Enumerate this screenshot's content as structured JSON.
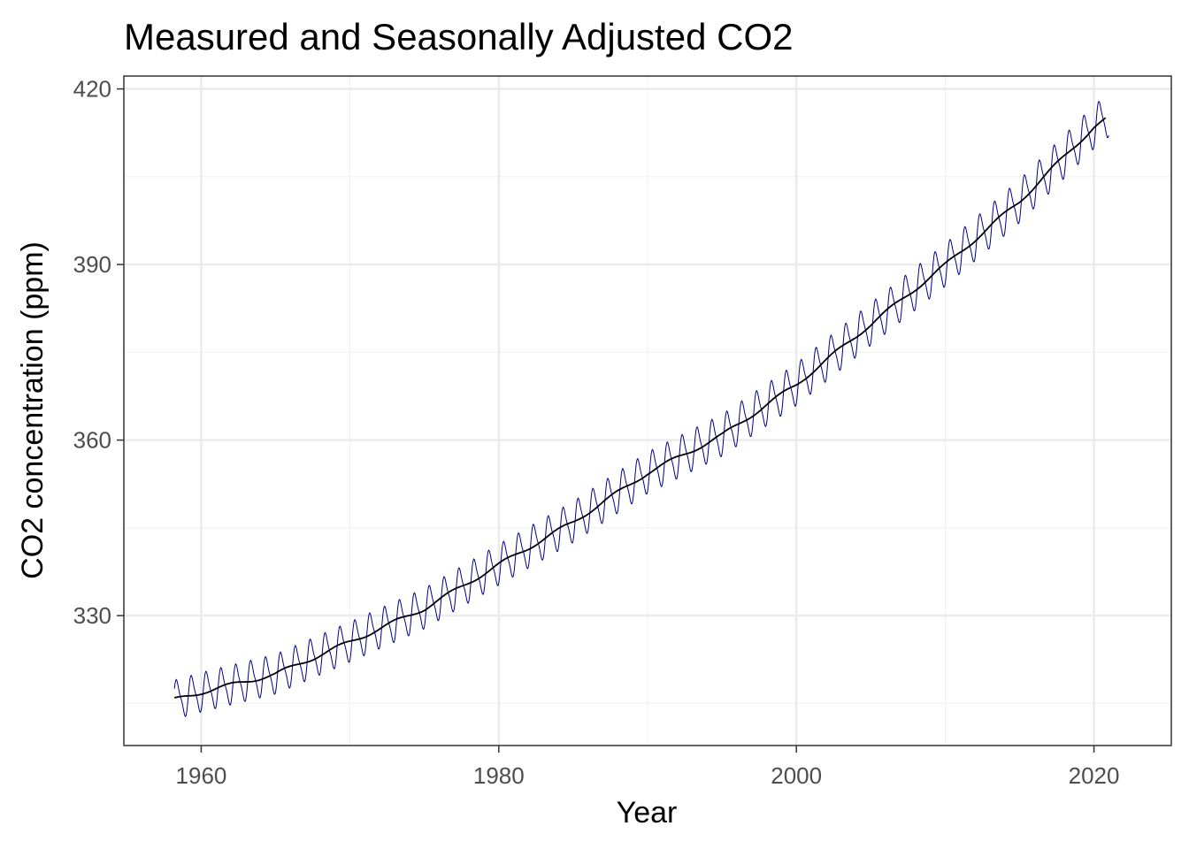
{
  "chart_data": {
    "type": "line",
    "title": "Measured and Seasonally Adjusted CO2",
    "xlabel": "Year",
    "ylabel": "CO2 concentration (ppm)",
    "xlim": [
      1954.8,
      2025.2
    ],
    "ylim": [
      307.8,
      422.2
    ],
    "x_ticks": [
      1960,
      1980,
      2000,
      2020
    ],
    "y_ticks": [
      330,
      360,
      390,
      420
    ],
    "grid": true,
    "legend": "none",
    "series": [
      {
        "key": "measured",
        "color": "#00008b",
        "start_year": 1958.2,
        "end_year": 2021.0,
        "trend_points": [
          [
            1958.2,
            315.6
          ],
          [
            1960,
            316.9
          ],
          [
            1965,
            320.0
          ],
          [
            1970,
            325.5
          ],
          [
            1975,
            331.2
          ],
          [
            1980,
            338.7
          ],
          [
            1985,
            346.0
          ],
          [
            1990,
            354.4
          ],
          [
            1995,
            360.8
          ],
          [
            2000,
            369.5
          ],
          [
            2005,
            379.8
          ],
          [
            2010,
            389.9
          ],
          [
            2015,
            400.8
          ],
          [
            2020,
            413.5
          ],
          [
            2021,
            415.5
          ]
        ],
        "seasonal_amplitude": 3.2
      },
      {
        "key": "seasonally-adjusted",
        "color": "#000000",
        "trend_points": [
          [
            1958.2,
            315.6
          ],
          [
            1960,
            316.9
          ],
          [
            1965,
            320.0
          ],
          [
            1970,
            325.5
          ],
          [
            1975,
            331.2
          ],
          [
            1980,
            338.7
          ],
          [
            1985,
            346.0
          ],
          [
            1990,
            354.4
          ],
          [
            1995,
            360.8
          ],
          [
            2000,
            369.5
          ],
          [
            2005,
            379.8
          ],
          [
            2010,
            389.9
          ],
          [
            2015,
            400.8
          ],
          [
            2020,
            413.5
          ],
          [
            2020.8,
            414.8
          ]
        ]
      }
    ]
  }
}
